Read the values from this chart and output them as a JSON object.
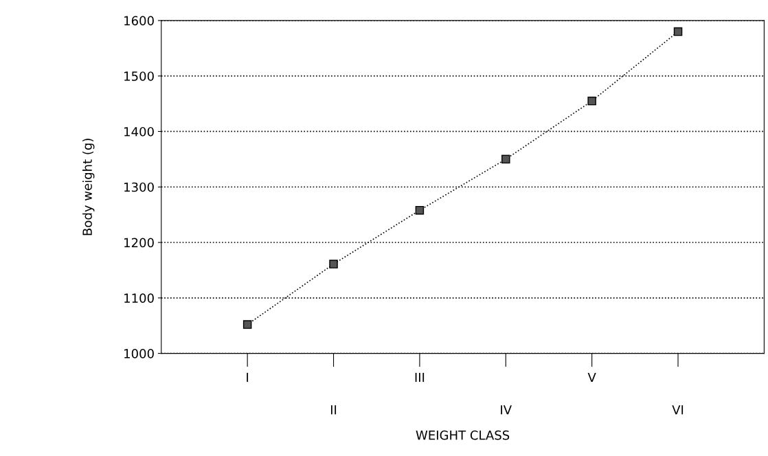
{
  "chart_data": {
    "type": "line",
    "xlabel": "WEIGHT CLASS",
    "ylabel": "Body weight (g)",
    "categories": [
      "I",
      "II",
      "III",
      "IV",
      "V",
      "VI"
    ],
    "series": [
      {
        "color": "#000000",
        "values": [
          1052,
          1161,
          1258,
          1350,
          1455,
          1580
        ]
      }
    ],
    "ylim": [
      1000,
      1600
    ],
    "yticks": [
      1000,
      1100,
      1200,
      1300,
      1400,
      1500,
      1600
    ],
    "grid": "y",
    "marker": "square",
    "line_style": "dotted"
  }
}
